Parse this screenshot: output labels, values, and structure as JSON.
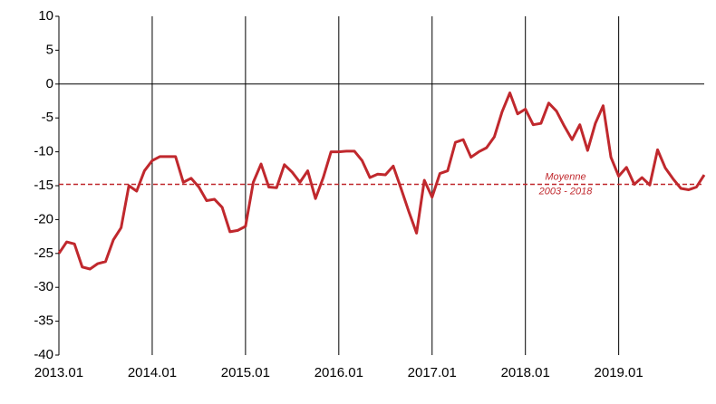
{
  "chart_data": {
    "type": "line",
    "categories": [
      "2013.01",
      null,
      null,
      null,
      null,
      null,
      null,
      null,
      null,
      null,
      null,
      null,
      "2014.01",
      null,
      null,
      null,
      null,
      null,
      null,
      null,
      null,
      null,
      null,
      null,
      "2015.01",
      null,
      null,
      null,
      null,
      null,
      null,
      null,
      null,
      null,
      null,
      null,
      "2016.01",
      null,
      null,
      null,
      null,
      null,
      null,
      null,
      null,
      null,
      null,
      null,
      "2017.01",
      null,
      null,
      null,
      null,
      null,
      null,
      null,
      null,
      null,
      null,
      null,
      "2018.01",
      null,
      null,
      null,
      null,
      null,
      null,
      null,
      null,
      null,
      null,
      null,
      "2019.01",
      null,
      null,
      null,
      null,
      null,
      null,
      null,
      null,
      null,
      null,
      null
    ],
    "values": [
      -25,
      -23.3,
      -23.6,
      -27,
      -27.3,
      -26.5,
      -26.2,
      -23,
      -21.2,
      -15,
      -15.8,
      -12.8,
      -11.3,
      -10.7,
      -10.7,
      -10.7,
      -14.5,
      -13.9,
      -15.2,
      -17.2,
      -17,
      -18.2,
      -21.8,
      -21.6,
      -21,
      -14.5,
      -11.8,
      -15.2,
      -15.3,
      -11.9,
      -13,
      -14.5,
      -12.8,
      -16.9,
      -13.8,
      -10,
      -10,
      -9.9,
      -9.9,
      -11.3,
      -13.8,
      -13.3,
      -13.4,
      -12.1,
      -15.4,
      -18.8,
      -22,
      -14.2,
      -16.7,
      -13.2,
      -12.8,
      -8.6,
      -8.2,
      -10.8,
      -10,
      -9.4,
      -7.8,
      -4.1,
      -1.3,
      -4.4,
      -3.7,
      -6,
      -5.8,
      -2.8,
      -4,
      -6.2,
      -8.2,
      -6,
      -9.8,
      -5.8,
      -3.2,
      -10.8,
      -13.6,
      -12.3,
      -14.8,
      -13.8,
      -14.9,
      -9.7,
      -12.4,
      -14,
      -15.4,
      -15.6,
      -15.2,
      -13.4
    ],
    "color": "#c0282d",
    "ylim": [
      -40,
      10
    ],
    "yticks": [
      -40,
      -35,
      -30,
      -25,
      -20,
      -15,
      -10,
      -5,
      0,
      5,
      10
    ],
    "reference_line": {
      "value": -14.8,
      "color": "#c0282d",
      "label": [
        "Moyenne",
        "2003 - 2018"
      ]
    }
  }
}
